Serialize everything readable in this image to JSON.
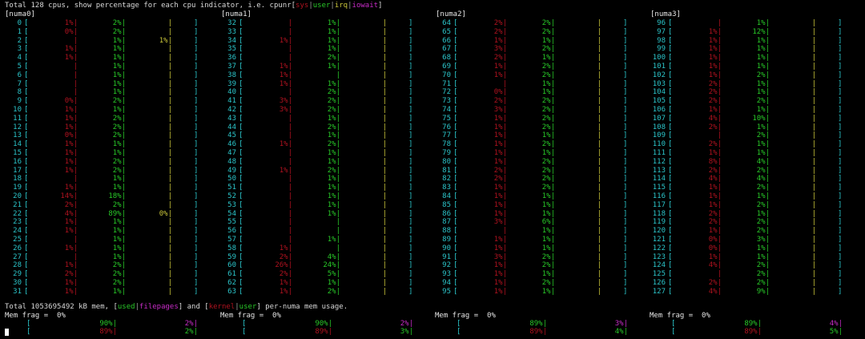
{
  "header": {
    "prefix": "Total 128 cpus, show percentage for each cpu indicator, i.e. cpunr[",
    "sys": "sys",
    "user": "user",
    "irq": "irq",
    "iowait": "iowait",
    "suffix": "]"
  },
  "numa": [
    {
      "label": "[numa0]"
    },
    {
      "label": "[numa1]"
    },
    {
      "label": "[numa2]"
    },
    {
      "label": "[numa3]"
    }
  ],
  "cpus": [
    [
      "0",
      "1%",
      "2%",
      ""
    ],
    [
      "1",
      "0%",
      "2%",
      ""
    ],
    [
      "2",
      "",
      "1%",
      "1%"
    ],
    [
      "3",
      "1%",
      "1%",
      ""
    ],
    [
      "4",
      "1%",
      "1%",
      ""
    ],
    [
      "5",
      "",
      "1%",
      ""
    ],
    [
      "6",
      "",
      "1%",
      ""
    ],
    [
      "7",
      "",
      "1%",
      ""
    ],
    [
      "8",
      "",
      "1%",
      ""
    ],
    [
      "9",
      "0%",
      "2%",
      ""
    ],
    [
      "10",
      "1%",
      "1%",
      ""
    ],
    [
      "11",
      "1%",
      "2%",
      ""
    ],
    [
      "12",
      "1%",
      "2%",
      ""
    ],
    [
      "13",
      "0%",
      "2%",
      ""
    ],
    [
      "14",
      "1%",
      "1%",
      ""
    ],
    [
      "15",
      "1%",
      "1%",
      ""
    ],
    [
      "16",
      "1%",
      "2%",
      ""
    ],
    [
      "17",
      "1%",
      "2%",
      ""
    ],
    [
      "18",
      "",
      "1%",
      ""
    ],
    [
      "19",
      "1%",
      "1%",
      ""
    ],
    [
      "20",
      "14%",
      "18%",
      ""
    ],
    [
      "21",
      "2%",
      "2%",
      ""
    ],
    [
      "22",
      "4%",
      "89%",
      "0%"
    ],
    [
      "23",
      "1%",
      "1%",
      ""
    ],
    [
      "24",
      "1%",
      "1%",
      ""
    ],
    [
      "25",
      "",
      "1%",
      ""
    ],
    [
      "26",
      "1%",
      "1%",
      ""
    ],
    [
      "27",
      "",
      "1%",
      ""
    ],
    [
      "28",
      "1%",
      "2%",
      ""
    ],
    [
      "29",
      "2%",
      "2%",
      ""
    ],
    [
      "30",
      "1%",
      "2%",
      ""
    ],
    [
      "31",
      "1%",
      "1%",
      ""
    ],
    [
      "32",
      "",
      "1%",
      ""
    ],
    [
      "33",
      "",
      "1%",
      ""
    ],
    [
      "34",
      "1%",
      "1%",
      ""
    ],
    [
      "35",
      "",
      "1%",
      ""
    ],
    [
      "36",
      "",
      "2%",
      ""
    ],
    [
      "37",
      "1%",
      "1%",
      ""
    ],
    [
      "38",
      "1%",
      "",
      ""
    ],
    [
      "39",
      "1%",
      "1%",
      ""
    ],
    [
      "40",
      "",
      "2%",
      ""
    ],
    [
      "41",
      "3%",
      "2%",
      ""
    ],
    [
      "42",
      "3%",
      "2%",
      ""
    ],
    [
      "43",
      "",
      "1%",
      ""
    ],
    [
      "44",
      "",
      "2%",
      ""
    ],
    [
      "45",
      "",
      "1%",
      ""
    ],
    [
      "46",
      "1%",
      "2%",
      ""
    ],
    [
      "47",
      "",
      "1%",
      ""
    ],
    [
      "48",
      "",
      "1%",
      ""
    ],
    [
      "49",
      "1%",
      "2%",
      ""
    ],
    [
      "50",
      "",
      "1%",
      ""
    ],
    [
      "51",
      "",
      "1%",
      ""
    ],
    [
      "52",
      "",
      "1%",
      ""
    ],
    [
      "53",
      "",
      "1%",
      ""
    ],
    [
      "54",
      "",
      "1%",
      ""
    ],
    [
      "55",
      "",
      "",
      ""
    ],
    [
      "56",
      "",
      "",
      ""
    ],
    [
      "57",
      "",
      "1%",
      ""
    ],
    [
      "58",
      "1%",
      "",
      ""
    ],
    [
      "59",
      "2%",
      "4%",
      ""
    ],
    [
      "60",
      "26%",
      "24%",
      ""
    ],
    [
      "61",
      "2%",
      "5%",
      ""
    ],
    [
      "62",
      "1%",
      "1%",
      ""
    ],
    [
      "63",
      "1%",
      "2%",
      ""
    ],
    [
      "64",
      "2%",
      "2%",
      ""
    ],
    [
      "65",
      "2%",
      "2%",
      ""
    ],
    [
      "66",
      "1%",
      "1%",
      ""
    ],
    [
      "67",
      "3%",
      "2%",
      ""
    ],
    [
      "68",
      "2%",
      "1%",
      ""
    ],
    [
      "69",
      "1%",
      "2%",
      ""
    ],
    [
      "70",
      "1%",
      "2%",
      ""
    ],
    [
      "71",
      "",
      "1%",
      ""
    ],
    [
      "72",
      "0%",
      "1%",
      ""
    ],
    [
      "73",
      "2%",
      "2%",
      ""
    ],
    [
      "74",
      "3%",
      "2%",
      ""
    ],
    [
      "75",
      "1%",
      "2%",
      ""
    ],
    [
      "76",
      "1%",
      "2%",
      ""
    ],
    [
      "77",
      "1%",
      "1%",
      ""
    ],
    [
      "78",
      "1%",
      "2%",
      ""
    ],
    [
      "79",
      "1%",
      "1%",
      ""
    ],
    [
      "80",
      "1%",
      "2%",
      ""
    ],
    [
      "81",
      "2%",
      "2%",
      ""
    ],
    [
      "82",
      "2%",
      "2%",
      ""
    ],
    [
      "83",
      "1%",
      "2%",
      ""
    ],
    [
      "84",
      "1%",
      "1%",
      ""
    ],
    [
      "85",
      "1%",
      "1%",
      ""
    ],
    [
      "86",
      "1%",
      "1%",
      ""
    ],
    [
      "87",
      "3%",
      "6%",
      ""
    ],
    [
      "88",
      "",
      "1%",
      ""
    ],
    [
      "89",
      "1%",
      "1%",
      ""
    ],
    [
      "90",
      "1%",
      "1%",
      ""
    ],
    [
      "91",
      "3%",
      "2%",
      ""
    ],
    [
      "92",
      "1%",
      "2%",
      ""
    ],
    [
      "93",
      "1%",
      "1%",
      ""
    ],
    [
      "94",
      "1%",
      "2%",
      ""
    ],
    [
      "95",
      "1%",
      "1%",
      ""
    ],
    [
      "96",
      "",
      "1%",
      ""
    ],
    [
      "97",
      "1%",
      "12%",
      ""
    ],
    [
      "98",
      "1%",
      "1%",
      ""
    ],
    [
      "99",
      "1%",
      "1%",
      ""
    ],
    [
      "100",
      "1%",
      "1%",
      ""
    ],
    [
      "101",
      "1%",
      "1%",
      ""
    ],
    [
      "102",
      "1%",
      "2%",
      ""
    ],
    [
      "103",
      "2%",
      "1%",
      ""
    ],
    [
      "104",
      "2%",
      "1%",
      ""
    ],
    [
      "105",
      "2%",
      "2%",
      ""
    ],
    [
      "106",
      "1%",
      "1%",
      ""
    ],
    [
      "107",
      "4%",
      "10%",
      ""
    ],
    [
      "108",
      "2%",
      "1%",
      ""
    ],
    [
      "109",
      "",
      "2%",
      ""
    ],
    [
      "110",
      "2%",
      "1%",
      ""
    ],
    [
      "111",
      "1%",
      "1%",
      ""
    ],
    [
      "112",
      "8%",
      "4%",
      ""
    ],
    [
      "113",
      "2%",
      "2%",
      ""
    ],
    [
      "114",
      "4%",
      "4%",
      ""
    ],
    [
      "115",
      "1%",
      "2%",
      ""
    ],
    [
      "116",
      "1%",
      "1%",
      ""
    ],
    [
      "117",
      "1%",
      "2%",
      ""
    ],
    [
      "118",
      "2%",
      "1%",
      ""
    ],
    [
      "119",
      "2%",
      "2%",
      ""
    ],
    [
      "120",
      "1%",
      "2%",
      ""
    ],
    [
      "121",
      "0%",
      "3%",
      ""
    ],
    [
      "122",
      "0%",
      "1%",
      ""
    ],
    [
      "123",
      "1%",
      "1%",
      ""
    ],
    [
      "124",
      "4%",
      "2%",
      ""
    ],
    [
      "125",
      "",
      "2%",
      ""
    ],
    [
      "126",
      "2%",
      "2%",
      ""
    ],
    [
      "127",
      "4%",
      "9%",
      ""
    ]
  ],
  "mem": {
    "prefix": "Total 1053695492 kB mem, [",
    "used": "used",
    "filepages": "filepages",
    "mid": "] and [",
    "kernel": "kernel",
    "user": "user",
    "suffix": "] per-numa mem usage.",
    "frag_label": "Mem frag =  0%",
    "nodes": [
      {
        "used": "90%",
        "filepages": "2%",
        "kernel": "89%",
        "user": "2%"
      },
      {
        "used": "90%",
        "filepages": "2%",
        "kernel": "89%",
        "user": "3%"
      },
      {
        "used": "89%",
        "filepages": "3%",
        "kernel": "89%",
        "user": "4%"
      },
      {
        "used": "89%",
        "filepages": "4%",
        "kernel": "89%",
        "user": "5%"
      }
    ]
  },
  "colors": {
    "sys": "#b0121f",
    "user": "#28c928",
    "irq": "#c9c53a",
    "iowait": "#c82cc8",
    "bracket": "#2bc4c9"
  }
}
